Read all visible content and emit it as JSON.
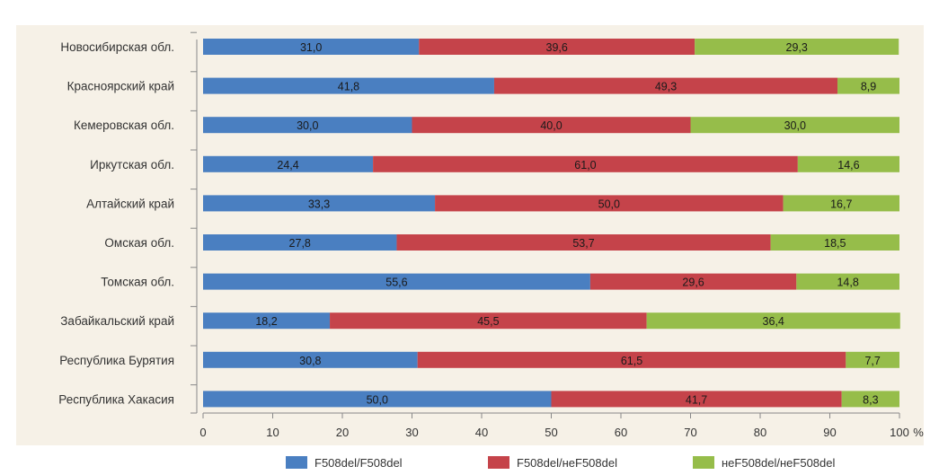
{
  "chart_data": {
    "type": "bar",
    "orientation": "horizontal",
    "stacked": true,
    "categories": [
      "Новосибирская обл.",
      "Красноярский край",
      "Кемеровская обл.",
      "Иркутская обл.",
      "Алтайский край",
      "Омская обл.",
      "Томская обл.",
      "Забайкальский край",
      "Республика Бурятия",
      "Республика Хакасия"
    ],
    "series": [
      {
        "name": "F508del/F508del",
        "color": "#4a7fc1",
        "values": [
          31.0,
          41.8,
          30.0,
          24.4,
          33.3,
          27.8,
          55.6,
          18.2,
          30.8,
          50.0
        ],
        "labels": [
          "31,0",
          "41,8",
          "30,0",
          "24,4",
          "33,3",
          "27,8",
          "55,6",
          "18,2",
          "30,8",
          "50,0"
        ]
      },
      {
        "name": "F508del/неF508del",
        "color": "#c5434a",
        "values": [
          39.6,
          49.3,
          40.0,
          61.0,
          50.0,
          53.7,
          29.6,
          45.5,
          61.5,
          41.7
        ],
        "labels": [
          "39,6",
          "49,3",
          "40,0",
          "61,0",
          "50,0",
          "53,7",
          "29,6",
          "45,5",
          "61,5",
          "41,7"
        ]
      },
      {
        "name": "неF508del/неF508del",
        "color": "#96bd4a",
        "values": [
          29.3,
          8.9,
          30.0,
          14.6,
          16.7,
          18.5,
          14.8,
          36.4,
          7.7,
          8.3
        ],
        "labels": [
          "29,3",
          "8,9",
          "30,0",
          "14,6",
          "16,7",
          "18,5",
          "14,8",
          "36,4",
          "7,7",
          "8,3"
        ]
      }
    ],
    "x_ticks": [
      "0",
      "10",
      "20",
      "30",
      "40",
      "50",
      "60",
      "70",
      "80",
      "90",
      "100"
    ],
    "xlim": [
      0,
      100
    ],
    "x_unit": "%",
    "legend_position": "bottom",
    "grid": false
  }
}
